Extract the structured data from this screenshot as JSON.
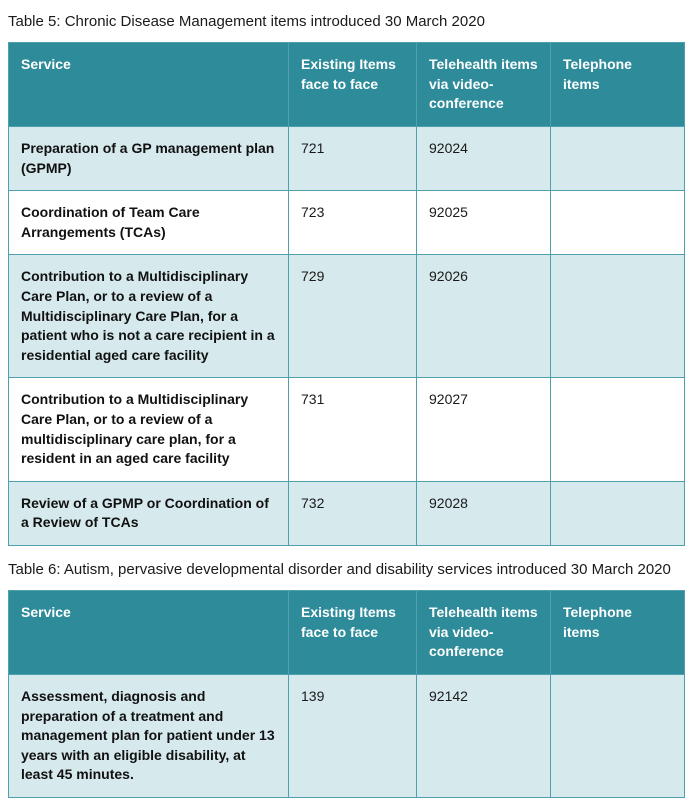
{
  "colors": {
    "header_bg": "#2e8b9a",
    "row_alt_bg": "#d6e9ed",
    "border": "#4f9fae",
    "header_text": "#ffffff"
  },
  "table5": {
    "caption": "Table 5: Chronic Disease Management items introduced 30 March 2020",
    "headers": [
      "Service",
      "Existing Items face to face",
      "Telehealth items via video-conference",
      "Telephone items"
    ],
    "rows": [
      {
        "service": "Preparation of a GP management plan (GPMP)",
        "existing": "721",
        "telehealth": "92024",
        "telephone": ""
      },
      {
        "service": "Coordination of Team Care Arrangements (TCAs)",
        "existing": "723",
        "telehealth": "92025",
        "telephone": ""
      },
      {
        "service": "Contribution to a Multidisciplinary Care Plan, or to a review of a Multidisciplinary Care Plan, for a patient who is not a care recipient in a residential aged care facility",
        "existing": "729",
        "telehealth": "92026",
        "telephone": ""
      },
      {
        "service": "Contribution to a Multidisciplinary Care Plan, or to a review of a multidisciplinary care plan, for a resident in an aged care facility",
        "existing": "731",
        "telehealth": "92027",
        "telephone": ""
      },
      {
        "service": "Review of a GPMP or Coordination of a Review of TCAs",
        "existing": "732",
        "telehealth": "92028",
        "telephone": ""
      }
    ]
  },
  "table6": {
    "caption": "Table 6: Autism, pervasive developmental disorder and disability services introduced 30 March 2020",
    "headers": [
      "Service",
      "Existing Items face to face",
      "Telehealth items via video-conference",
      "Telephone items"
    ],
    "rows": [
      {
        "service": "Assessment, diagnosis and preparation of a treatment and management plan for patient under 13 years with an eligible disability, at least 45 minutes.",
        "existing": "139",
        "telehealth": "92142",
        "telephone": ""
      }
    ]
  }
}
